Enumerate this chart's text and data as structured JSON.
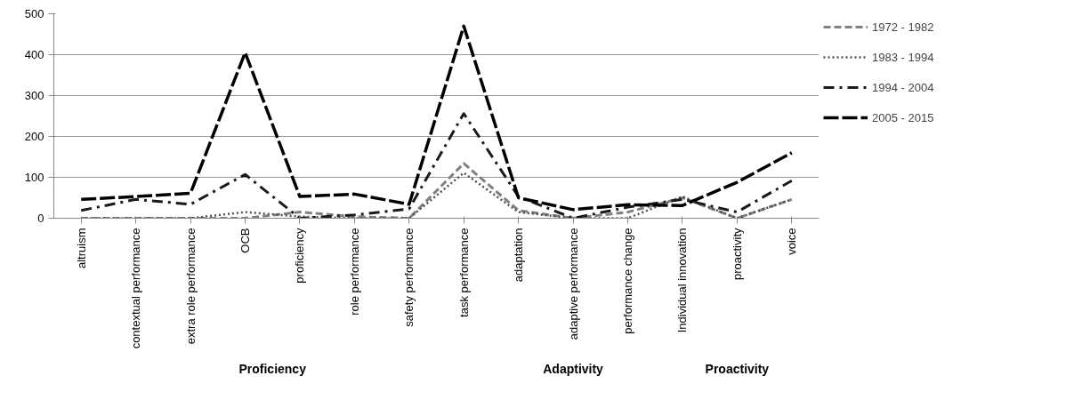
{
  "chart_data": {
    "type": "line",
    "categories": [
      "altruism",
      "contextual performance",
      "extra role performance",
      "OCB",
      "proficiency",
      "role performance",
      "safety performance",
      "task performance",
      "adaptation",
      "adaptive performance",
      "performance change",
      "Individual innovation",
      "proactivity",
      "voice"
    ],
    "series": [
      {
        "name": "1972 - 1982",
        "color": "#808080",
        "line_style": "dashed",
        "values": [
          0,
          0,
          0,
          0,
          15,
          4,
          0,
          134,
          19,
          0,
          15,
          50,
          0,
          46
        ]
      },
      {
        "name": "1983 - 1994",
        "color": "#505050",
        "line_style": "dotted",
        "values": [
          0,
          0,
          0,
          15,
          4,
          0,
          0,
          111,
          15,
          0,
          0,
          53,
          0,
          46
        ]
      },
      {
        "name": "1994 - 2004",
        "color": "#1a1a1a",
        "line_style": "dashdot",
        "values": [
          19,
          46,
          34,
          107,
          0,
          8,
          23,
          256,
          53,
          0,
          27,
          46,
          15,
          92
        ]
      },
      {
        "name": "2005 - 2015",
        "color": "#000000",
        "line_style": "longdash",
        "values": [
          46,
          53,
          61,
          405,
          53,
          59,
          34,
          470,
          50,
          21,
          33,
          31,
          88,
          160
        ]
      }
    ],
    "ylim": [
      0,
      500
    ],
    "yticks": [
      0,
      100,
      200,
      300,
      400,
      500
    ],
    "grid": "y",
    "legend": "right",
    "marker": "none",
    "annotations": [
      "Proficiency",
      "Adaptivity",
      "Proactivity"
    ]
  }
}
